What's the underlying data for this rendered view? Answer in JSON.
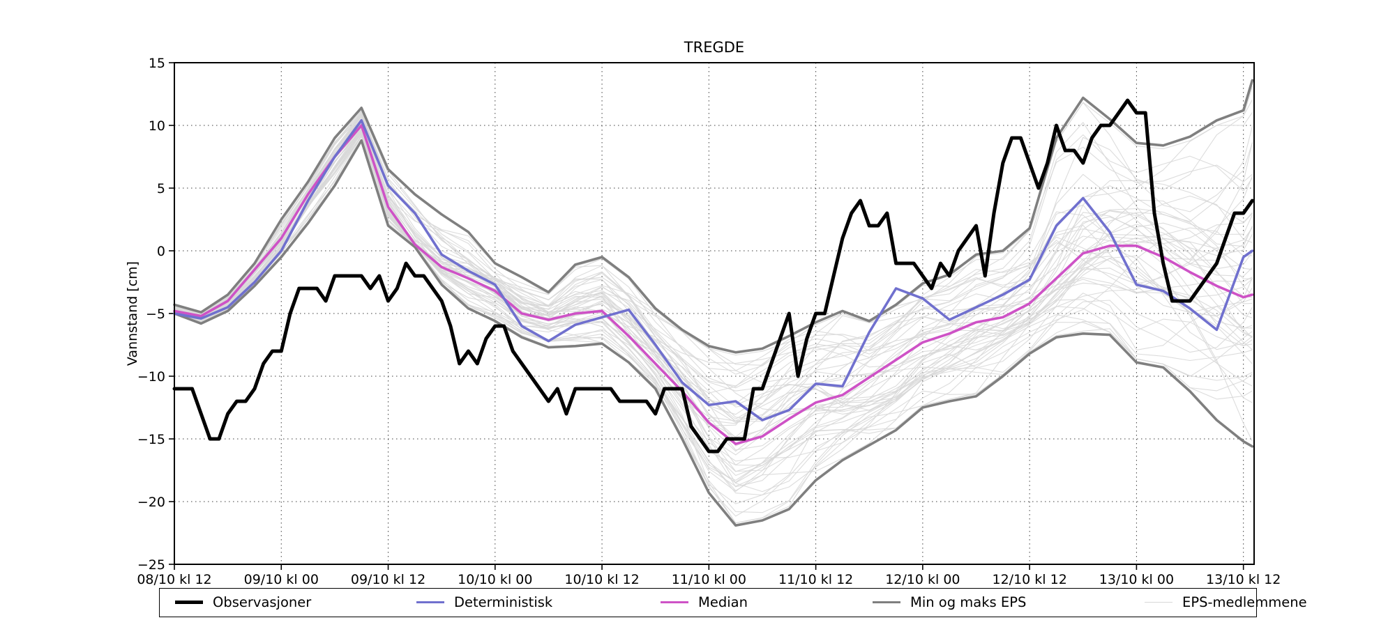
{
  "title": "TREGDE",
  "ylabel": "Vannstand [cm]",
  "axes": {
    "x_ticklabels": [
      "08/10 kl 12",
      "09/10 kl 00",
      "09/10 kl 12",
      "10/10 kl 00",
      "10/10 kl 12",
      "11/10 kl 00",
      "11/10 kl 12",
      "12/10 kl 00",
      "12/10 kl 12",
      "13/10 kl 00",
      "13/10 kl 12"
    ],
    "x_tick_hours": [
      0,
      12,
      24,
      36,
      48,
      60,
      72,
      84,
      96,
      108,
      120
    ],
    "y_ticklabels": [
      "15",
      "10",
      "5",
      "0",
      "−5",
      "−10",
      "−15",
      "−20",
      "−25"
    ],
    "y_tick_values": [
      15,
      10,
      5,
      0,
      -5,
      -10,
      -15,
      -20,
      -25
    ],
    "ylim": [
      -25,
      15
    ],
    "xlim_hours": [
      0,
      121.2
    ],
    "grid": "dotted"
  },
  "legend": {
    "items": [
      {
        "label": "Observasjoner",
        "color": "#000000",
        "width": 5
      },
      {
        "label": "Deterministisk",
        "color": "#7070CE",
        "width": 3.6
      },
      {
        "label": "Median",
        "color": "#CE52C6",
        "width": 3.6
      },
      {
        "label": "Min og maks EPS",
        "color": "#7f7f7f",
        "width": 3.6
      },
      {
        "label": "EPS-medlemmene",
        "color": "#d8d8d8",
        "width": 1.2
      }
    ],
    "item_offsets": [
      22,
      368,
      718,
      1022,
      1412
    ]
  },
  "chart_data": {
    "type": "line",
    "x_unit": "hours since 08/10 kl 12",
    "obs_hours_step": 1,
    "observations": [
      -11,
      -11,
      -11,
      -13,
      -15,
      -15,
      -13,
      -12,
      -12,
      -11,
      -9,
      -8,
      -8,
      -5,
      -3,
      -3,
      -3,
      -4,
      -2,
      -2,
      -2,
      -2,
      -3,
      -2,
      -4,
      -3,
      -1,
      -2,
      -2,
      -3,
      -4,
      -6,
      -9,
      -8,
      -9,
      -7,
      -6,
      -6,
      -8,
      -9,
      -10,
      -11,
      -12,
      -11,
      -13,
      -11,
      -11,
      -11,
      -11,
      -11,
      -12,
      -12,
      -12,
      -12,
      -13,
      -11,
      -11,
      -11,
      -14,
      -15,
      -16,
      -16,
      -15,
      -15,
      -15,
      -11,
      -11,
      -9,
      -7,
      -5,
      -10,
      -7,
      -5,
      -5,
      -2,
      1,
      3,
      4,
      2,
      2,
      3,
      -1,
      -1,
      -1,
      -2,
      -3,
      -1,
      -2,
      0,
      1,
      2,
      -2,
      3,
      7,
      9,
      9,
      7,
      5,
      7,
      10,
      8,
      8,
      7,
      9,
      10,
      10,
      11,
      12,
      11,
      11,
      3,
      -1,
      -4,
      -4,
      -4,
      -3,
      -2,
      -1,
      1,
      3,
      3,
      4
    ],
    "forecast_hours": [
      0,
      3,
      6,
      9,
      12,
      15,
      18,
      21,
      24,
      27,
      30,
      33,
      36,
      39,
      42,
      45,
      48,
      51,
      54,
      57,
      60,
      63,
      66,
      69,
      72,
      75,
      78,
      81,
      84,
      87,
      90,
      93,
      96,
      99,
      102,
      105,
      108,
      111,
      114,
      117,
      120,
      121
    ],
    "series": [
      {
        "name": "Observasjoner",
        "color": "#000000",
        "width": 5
      },
      {
        "name": "Deterministisk",
        "color": "#7070CE",
        "width": 3.6,
        "values": [
          -5,
          -5.4,
          -4.5,
          -2.5,
          0,
          4,
          7.5,
          10.4,
          5.2,
          3,
          -0.3,
          -1.6,
          -2.7,
          -6,
          -7.2,
          -5.9,
          -5.3,
          -4.7,
          -7.5,
          -10.5,
          -12.3,
          -12,
          -13.5,
          -12.7,
          -10.6,
          -10.8,
          -6.5,
          -3,
          -3.8,
          -5.5,
          -4.5,
          -3.5,
          -2.3,
          2,
          4.2,
          1.5,
          -2.7,
          -3.2,
          -4.6,
          -6.3,
          -0.5,
          0
        ]
      },
      {
        "name": "Median",
        "color": "#CE52C6",
        "width": 3.6,
        "values": [
          -4.8,
          -5.2,
          -4,
          -1.5,
          1,
          4.5,
          7.5,
          10,
          3.5,
          0.5,
          -1.3,
          -2.2,
          -3.2,
          -5,
          -5.5,
          -5,
          -4.8,
          -6.8,
          -9,
          -11.2,
          -13.7,
          -15.4,
          -14.8,
          -13.4,
          -12.1,
          -11.5,
          -10.1,
          -8.7,
          -7.3,
          -6.6,
          -5.7,
          -5.3,
          -4.2,
          -2.2,
          -0.2,
          0.4,
          0.4,
          -0.5,
          -1.7,
          -2.8,
          -3.7,
          -3.5
        ]
      },
      {
        "name": "Maks EPS",
        "color": "#7f7f7f",
        "width": 3.6,
        "values": [
          -4.3,
          -4.9,
          -3.5,
          -1,
          2.5,
          5.5,
          9,
          11.4,
          6.5,
          4.5,
          2.9,
          1.5,
          -1,
          -2.1,
          -3.3,
          -1.1,
          -0.5,
          -2.1,
          -4.6,
          -6.3,
          -7.6,
          -8.1,
          -7.8,
          -6.8,
          -5.7,
          -4.8,
          -5.6,
          -4.3,
          -2.6,
          -1.9,
          -0.3,
          0,
          1.8,
          9,
          12.2,
          10.5,
          8.6,
          8.4,
          9.1,
          10.4,
          11.2,
          13.6
        ]
      },
      {
        "name": "Min EPS",
        "color": "#7f7f7f",
        "width": 3.6,
        "values": [
          -5,
          -5.8,
          -4.8,
          -2.8,
          -0.5,
          2.2,
          5.2,
          8.8,
          2,
          0.3,
          -2.7,
          -4.6,
          -5.6,
          -6.9,
          -7.7,
          -7.6,
          -7.4,
          -8.9,
          -11,
          -15,
          -19.3,
          -21.9,
          -21.5,
          -20.6,
          -18.3,
          -16.7,
          -15.5,
          -14.3,
          -12.5,
          -12,
          -11.6,
          -10,
          -8.2,
          -6.9,
          -6.6,
          -6.7,
          -8.9,
          -9.3,
          -11.2,
          -13.5,
          -15.2,
          -15.6
        ]
      }
    ],
    "eps_members": {
      "name": "EPS-medlemmene",
      "color": "#d8d8d8",
      "width": 1.1,
      "count": 50,
      "seed": 7,
      "note": "thin light-gray ensemble traces filling the min–max envelope"
    }
  }
}
